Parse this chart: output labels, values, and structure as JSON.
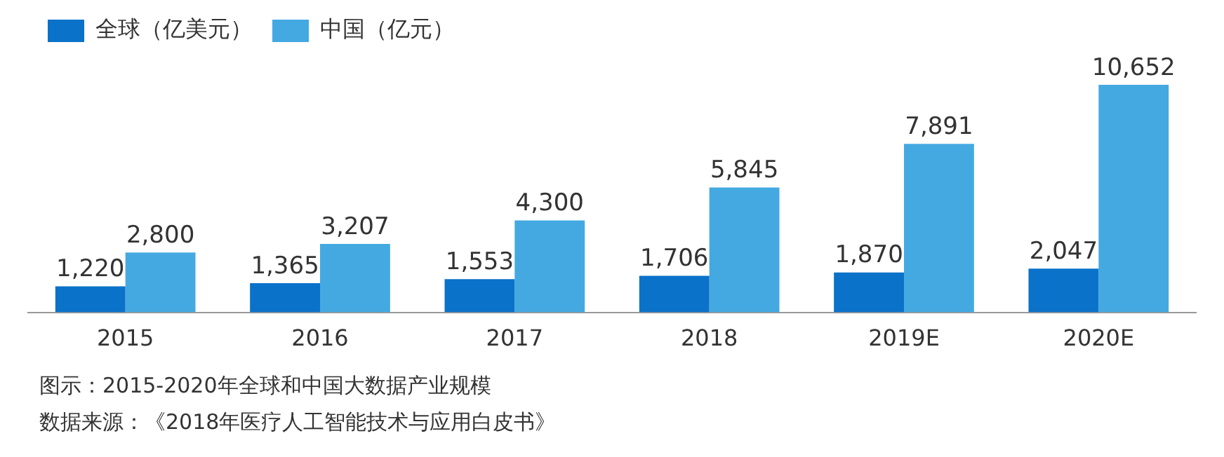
{
  "chart_data": {
    "type": "bar",
    "categories": [
      "2015",
      "2016",
      "2017",
      "2018",
      "2019E",
      "2020E"
    ],
    "series": [
      {
        "name": "全球（亿美元）",
        "color": "#0a72c9",
        "values": [
          1220,
          1365,
          1553,
          1706,
          1870,
          2047
        ],
        "value_labels": [
          "1,220",
          "1,365",
          "1,553",
          "1,706",
          "1,870",
          "2,047"
        ]
      },
      {
        "name": "中国（亿元）",
        "color": "#44a9e1",
        "values": [
          2800,
          3207,
          4300,
          5845,
          7891,
          10652
        ],
        "value_labels": [
          "2,800",
          "3,207",
          "4,300",
          "5,845",
          "7,891",
          "10,652"
        ]
      }
    ],
    "legend": "top left",
    "grid": false,
    "annotations": [
      "图示：2015-2020年全球和中国大数据产业规模",
      "数据来源：《2018年医疗人工智能技术与应用白皮书》"
    ]
  }
}
